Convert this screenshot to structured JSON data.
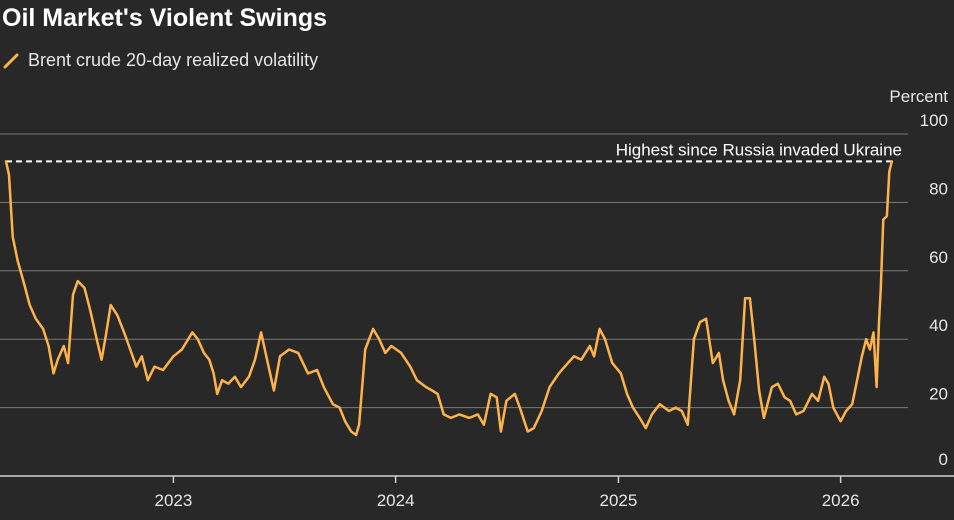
{
  "title": "Oil Market's Violent Swings",
  "colors": {
    "background": "#282828",
    "series": "#FDB34A",
    "grid": "#7a7a7a",
    "reference_line": "#ffffff"
  },
  "chart_data": {
    "type": "line",
    "title": "Oil Market's Violent Swings",
    "unit_label": "Percent",
    "ylim": [
      0,
      100
    ],
    "y_ticks": [
      0,
      20,
      40,
      60,
      80,
      100
    ],
    "x_range": [
      "2022-04-01",
      "2026-04-20"
    ],
    "x_ticks": [
      {
        "label": "2023",
        "date": "2023-01-01"
      },
      {
        "label": "2024",
        "date": "2024-01-01"
      },
      {
        "label": "2025",
        "date": "2025-01-01"
      },
      {
        "label": "2026",
        "date": "2026-01-01"
      }
    ],
    "grid": "horizontal",
    "legend_placement": "top-left",
    "series": [
      {
        "name": "Brent crude 20-day realized volatility",
        "color": "#FDB34A",
        "points": [
          [
            "2022-04-01",
            92
          ],
          [
            "2022-04-06",
            88
          ],
          [
            "2022-04-12",
            70
          ],
          [
            "2022-04-20",
            63
          ],
          [
            "2022-05-01",
            56
          ],
          [
            "2022-05-10",
            50
          ],
          [
            "2022-05-20",
            46
          ],
          [
            "2022-06-01",
            43
          ],
          [
            "2022-06-10",
            38
          ],
          [
            "2022-06-18",
            30
          ],
          [
            "2022-06-25",
            34
          ],
          [
            "2022-07-05",
            38
          ],
          [
            "2022-07-12",
            33
          ],
          [
            "2022-07-20",
            53
          ],
          [
            "2022-07-28",
            57
          ],
          [
            "2022-08-08",
            55
          ],
          [
            "2022-08-18",
            48
          ],
          [
            "2022-08-28",
            40
          ],
          [
            "2022-09-05",
            34
          ],
          [
            "2022-09-12",
            41
          ],
          [
            "2022-09-20",
            50
          ],
          [
            "2022-10-01",
            47
          ],
          [
            "2022-10-12",
            42
          ],
          [
            "2022-10-20",
            38
          ],
          [
            "2022-11-01",
            32
          ],
          [
            "2022-11-10",
            35
          ],
          [
            "2022-11-20",
            28
          ],
          [
            "2022-12-01",
            32
          ],
          [
            "2022-12-15",
            31
          ],
          [
            "2023-01-01",
            35
          ],
          [
            "2023-01-15",
            37
          ],
          [
            "2023-02-01",
            42
          ],
          [
            "2023-02-10",
            40
          ],
          [
            "2023-02-20",
            36
          ],
          [
            "2023-03-01",
            34
          ],
          [
            "2023-03-08",
            30
          ],
          [
            "2023-03-14",
            24
          ],
          [
            "2023-03-22",
            28
          ],
          [
            "2023-04-01",
            27
          ],
          [
            "2023-04-12",
            29
          ],
          [
            "2023-04-22",
            26
          ],
          [
            "2023-05-05",
            29
          ],
          [
            "2023-05-15",
            34
          ],
          [
            "2023-05-25",
            42
          ],
          [
            "2023-06-05",
            33
          ],
          [
            "2023-06-15",
            25
          ],
          [
            "2023-06-25",
            35
          ],
          [
            "2023-07-10",
            37
          ],
          [
            "2023-07-25",
            36
          ],
          [
            "2023-08-10",
            30
          ],
          [
            "2023-08-25",
            31
          ],
          [
            "2023-09-05",
            26
          ],
          [
            "2023-09-20",
            21
          ],
          [
            "2023-10-01",
            20
          ],
          [
            "2023-10-10",
            16
          ],
          [
            "2023-10-20",
            13
          ],
          [
            "2023-10-28",
            12
          ],
          [
            "2023-11-02",
            15
          ],
          [
            "2023-11-12",
            37
          ],
          [
            "2023-11-25",
            43
          ],
          [
            "2023-12-05",
            40
          ],
          [
            "2023-12-15",
            36
          ],
          [
            "2023-12-25",
            38
          ],
          [
            "2024-01-10",
            36
          ],
          [
            "2024-01-25",
            32
          ],
          [
            "2024-02-05",
            28
          ],
          [
            "2024-02-20",
            26
          ],
          [
            "2024-03-01",
            25
          ],
          [
            "2024-03-10",
            24
          ],
          [
            "2024-03-20",
            18
          ],
          [
            "2024-04-01",
            17
          ],
          [
            "2024-04-15",
            18
          ],
          [
            "2024-05-01",
            17
          ],
          [
            "2024-05-15",
            18
          ],
          [
            "2024-05-25",
            15
          ],
          [
            "2024-06-05",
            24
          ],
          [
            "2024-06-15",
            23
          ],
          [
            "2024-06-22",
            13
          ],
          [
            "2024-07-01",
            22
          ],
          [
            "2024-07-15",
            24
          ],
          [
            "2024-07-25",
            19
          ],
          [
            "2024-08-05",
            13
          ],
          [
            "2024-08-15",
            14
          ],
          [
            "2024-08-28",
            19
          ],
          [
            "2024-09-10",
            26
          ],
          [
            "2024-09-25",
            30
          ],
          [
            "2024-10-10",
            33
          ],
          [
            "2024-10-20",
            35
          ],
          [
            "2024-11-01",
            34
          ],
          [
            "2024-11-15",
            38
          ],
          [
            "2024-11-22",
            35
          ],
          [
            "2024-12-01",
            43
          ],
          [
            "2024-12-10",
            40
          ],
          [
            "2024-12-22",
            33
          ],
          [
            "2025-01-05",
            30
          ],
          [
            "2025-01-15",
            24
          ],
          [
            "2025-01-25",
            20
          ],
          [
            "2025-02-05",
            17
          ],
          [
            "2025-02-15",
            14
          ],
          [
            "2025-02-25",
            18
          ],
          [
            "2025-03-10",
            21
          ],
          [
            "2025-03-25",
            19
          ],
          [
            "2025-04-05",
            20
          ],
          [
            "2025-04-15",
            19
          ],
          [
            "2025-04-25",
            15
          ],
          [
            "2025-05-05",
            40
          ],
          [
            "2025-05-15",
            45
          ],
          [
            "2025-05-25",
            46
          ],
          [
            "2025-06-05",
            33
          ],
          [
            "2025-06-15",
            36
          ],
          [
            "2025-06-22",
            28
          ],
          [
            "2025-07-01",
            22
          ],
          [
            "2025-07-10",
            18
          ],
          [
            "2025-07-20",
            28
          ],
          [
            "2025-07-28",
            52
          ],
          [
            "2025-08-05",
            52
          ],
          [
            "2025-08-12",
            40
          ],
          [
            "2025-08-20",
            25
          ],
          [
            "2025-08-28",
            17
          ],
          [
            "2025-09-10",
            26
          ],
          [
            "2025-09-20",
            27
          ],
          [
            "2025-10-01",
            23
          ],
          [
            "2025-10-10",
            22
          ],
          [
            "2025-10-20",
            18
          ],
          [
            "2025-11-01",
            19
          ],
          [
            "2025-11-15",
            24
          ],
          [
            "2025-11-25",
            22
          ],
          [
            "2025-12-05",
            29
          ],
          [
            "2025-12-12",
            27
          ],
          [
            "2025-12-20",
            20
          ],
          [
            "2026-01-01",
            16
          ],
          [
            "2026-01-10",
            19
          ],
          [
            "2026-01-20",
            21
          ],
          [
            "2026-01-28",
            28
          ],
          [
            "2026-02-05",
            35
          ],
          [
            "2026-02-12",
            40
          ],
          [
            "2026-02-18",
            37
          ],
          [
            "2026-02-24",
            42
          ],
          [
            "2026-03-01",
            26
          ],
          [
            "2026-03-05",
            45
          ],
          [
            "2026-03-08",
            55
          ],
          [
            "2026-03-12",
            75
          ],
          [
            "2026-03-18",
            76
          ],
          [
            "2026-03-22",
            89
          ],
          [
            "2026-03-26",
            92
          ]
        ]
      }
    ],
    "annotations": [
      {
        "text": "Highest since Russia invaded Ukraine",
        "type": "horizontal-dashed-line",
        "y": 92
      }
    ]
  }
}
